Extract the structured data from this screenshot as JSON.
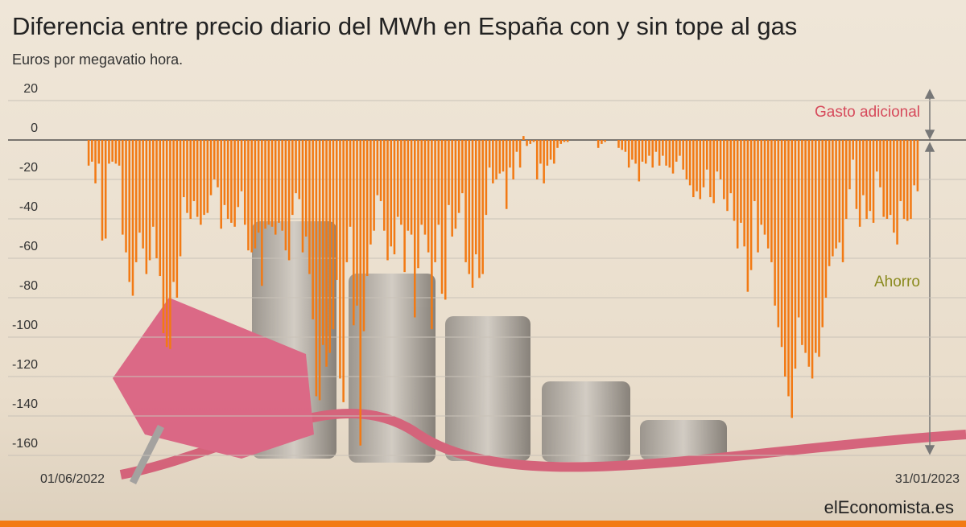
{
  "chart_data": {
    "type": "bar",
    "title": "Diferencia entre precio diario del MWh en España con y sin tope al gas",
    "subtitle": "Euros por megavatio hora.",
    "xlim": [
      "01/06/2022",
      "31/01/2023"
    ],
    "values": [
      -13,
      -11,
      -22,
      -12,
      -51,
      -50,
      -12,
      -11,
      -12,
      -13,
      -48,
      -57,
      -72,
      -79,
      -62,
      -47,
      -55,
      -68,
      -61,
      -44,
      -60,
      -69,
      -98,
      -105,
      -106,
      -72,
      -80,
      -59,
      -29,
      -37,
      -40,
      -31,
      -39,
      -43,
      -38,
      -37,
      -28,
      -20,
      -24,
      -45,
      -33,
      -40,
      -42,
      -44,
      -34,
      -26,
      -43,
      -56,
      -57,
      -55,
      -47,
      -74,
      -45,
      -43,
      -44,
      -48,
      -42,
      -46,
      -56,
      -61,
      -38,
      -27,
      -30,
      -57,
      -49,
      -68,
      -91,
      -130,
      -132,
      -104,
      -115,
      -108,
      -96,
      -71,
      -121,
      -133,
      -62,
      -44,
      -94,
      -84,
      -155,
      -97,
      -69,
      -53,
      -46,
      -28,
      -31,
      -46,
      -61,
      -54,
      -58,
      -39,
      -43,
      -67,
      -46,
      -48,
      -90,
      -65,
      -43,
      -48,
      -57,
      -96,
      -62,
      -43,
      -78,
      -81,
      -33,
      -49,
      -45,
      -37,
      -27,
      -62,
      -68,
      -75,
      -58,
      -70,
      -68,
      -38,
      -14,
      -22,
      -20,
      -17,
      -16,
      -35,
      -14,
      -20,
      -6,
      -14,
      2,
      -3,
      -2,
      -1,
      -20,
      -12,
      -22,
      -13,
      -10,
      -12,
      -4,
      -2,
      -1,
      -1,
      0,
      0,
      0,
      0,
      0,
      0,
      0,
      0,
      -4,
      -2,
      -1,
      0,
      0,
      0,
      -4,
      -5,
      -6,
      -14,
      -10,
      -12,
      -21,
      -11,
      -12,
      -8,
      -14,
      -6,
      -13,
      -8,
      -13,
      -14,
      -17,
      -11,
      -8,
      -15,
      -20,
      -23,
      -29,
      -26,
      -30,
      -24,
      -15,
      -29,
      -32,
      -16,
      -20,
      -30,
      -36,
      -27,
      -41,
      -55,
      -42,
      -54,
      -77,
      -66,
      -31,
      -57,
      -43,
      -48,
      -55,
      -62,
      -84,
      -95,
      -105,
      -120,
      -130,
      -141,
      -116,
      -90,
      -104,
      -108,
      -115,
      -121,
      -108,
      -110,
      -95,
      -80,
      -64,
      -59,
      -55,
      -52,
      -62,
      -40,
      -25,
      -10,
      -35,
      -44,
      -28,
      -40,
      -36,
      -42,
      -16,
      -24,
      -39,
      -40,
      -38,
      -47,
      -53,
      -31,
      -40,
      -41,
      -40,
      -23,
      -26
    ],
    "color": "#f27a14",
    "ylim": [
      -160,
      20
    ],
    "yticks": [
      20,
      0,
      -20,
      -40,
      -60,
      -80,
      -100,
      -120,
      -140,
      -160
    ],
    "grid": true,
    "annotations": [
      "Gasto adicional",
      "Ahorro"
    ],
    "source": "elEconomista.es"
  }
}
